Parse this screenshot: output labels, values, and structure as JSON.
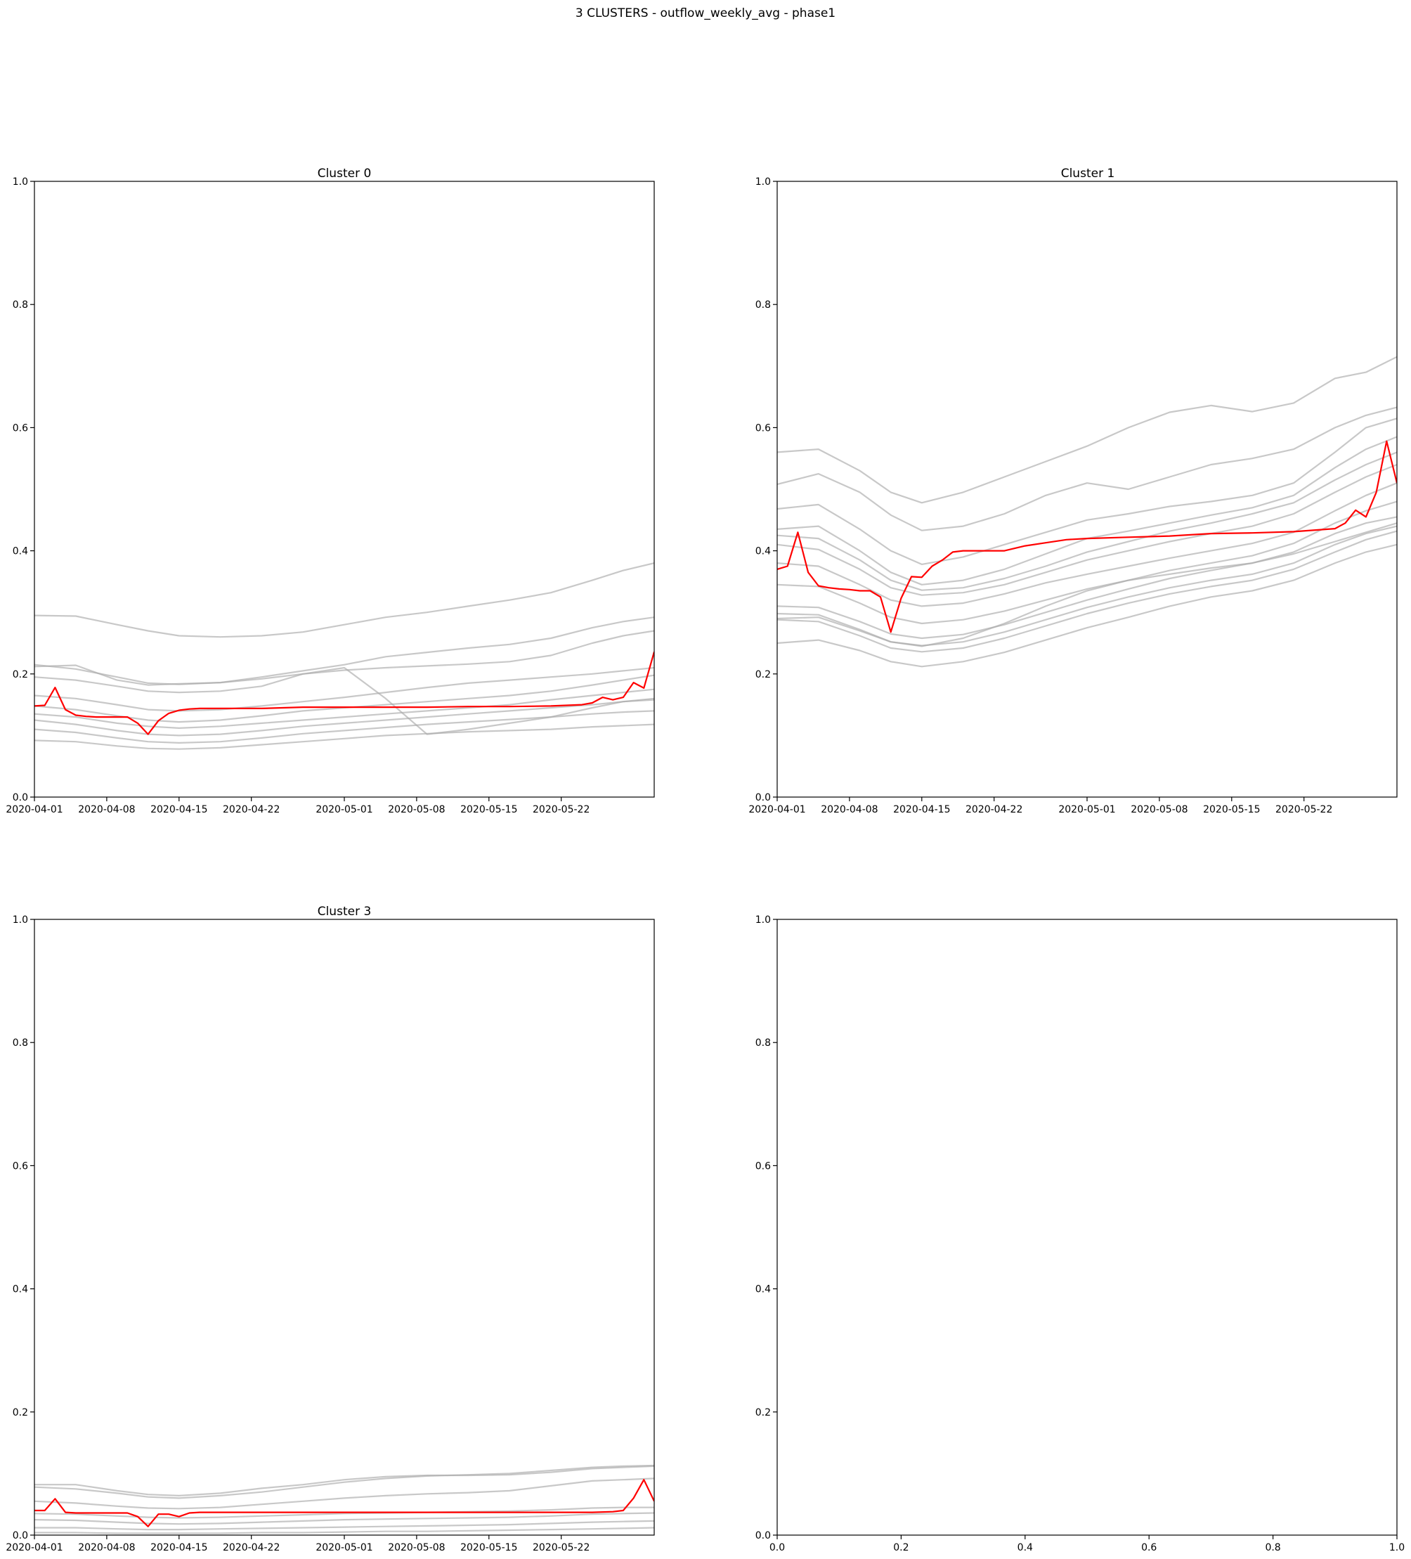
{
  "figure": {
    "title": "3 CLUSTERS - outflow_weekly_avg - phase1"
  },
  "colors": {
    "member": "#aaaaaa",
    "centroid": "#ff0000",
    "axis": "#000000"
  },
  "chart_data": [
    {
      "type": "line",
      "title": "Cluster 0",
      "ylim": [
        0,
        1
      ],
      "y_ticks": [
        "0.0",
        "0.2",
        "0.4",
        "0.6",
        "0.8",
        "1.0"
      ],
      "x_ticks": [
        "2020-04-01",
        "2020-04-08",
        "2020-04-15",
        "2020-04-22",
        "2020-05-01",
        "2020-05-08",
        "2020-05-15",
        "2020-05-22"
      ],
      "x_days": [
        0,
        7,
        14,
        21,
        30,
        37,
        44,
        51
      ],
      "x_range_days": [
        0,
        60
      ],
      "x": [
        0,
        4,
        8,
        11,
        14,
        18,
        22,
        26,
        30,
        34,
        38,
        42,
        46,
        50,
        54,
        57,
        60
      ],
      "series": [
        {
          "role": "member",
          "values": [
            0.295,
            0.294,
            0.28,
            0.27,
            0.262,
            0.26,
            0.262,
            0.268,
            0.28,
            0.292,
            0.3,
            0.31,
            0.32,
            0.332,
            0.352,
            0.368,
            0.38
          ]
        },
        {
          "role": "member",
          "values": [
            0.212,
            0.214,
            0.19,
            0.182,
            0.184,
            0.186,
            0.195,
            0.205,
            0.215,
            0.228,
            0.235,
            0.242,
            0.248,
            0.258,
            0.275,
            0.285,
            0.292
          ]
        },
        {
          "role": "member",
          "values": [
            0.215,
            0.208,
            0.195,
            0.185,
            0.183,
            0.186,
            0.192,
            0.2,
            0.206,
            0.21,
            0.213,
            0.216,
            0.22,
            0.23,
            0.25,
            0.262,
            0.27
          ]
        },
        {
          "role": "member",
          "values": [
            0.195,
            0.19,
            0.18,
            0.172,
            0.17,
            0.172,
            0.18,
            0.2,
            0.21,
            0.16,
            0.102,
            0.11,
            0.12,
            0.13,
            0.145,
            0.155,
            0.16
          ]
        },
        {
          "role": "member",
          "values": [
            0.165,
            0.16,
            0.15,
            0.142,
            0.14,
            0.142,
            0.148,
            0.155,
            0.162,
            0.17,
            0.178,
            0.185,
            0.19,
            0.195,
            0.2,
            0.205,
            0.21
          ]
        },
        {
          "role": "member",
          "values": [
            0.148,
            0.142,
            0.132,
            0.125,
            0.122,
            0.125,
            0.132,
            0.14,
            0.145,
            0.15,
            0.155,
            0.16,
            0.165,
            0.172,
            0.182,
            0.19,
            0.198
          ]
        },
        {
          "role": "member",
          "values": [
            0.135,
            0.13,
            0.12,
            0.115,
            0.112,
            0.115,
            0.12,
            0.125,
            0.13,
            0.135,
            0.14,
            0.145,
            0.15,
            0.158,
            0.165,
            0.17,
            0.175
          ]
        },
        {
          "role": "member",
          "values": [
            0.125,
            0.118,
            0.108,
            0.102,
            0.1,
            0.102,
            0.108,
            0.115,
            0.12,
            0.125,
            0.13,
            0.135,
            0.14,
            0.145,
            0.15,
            0.155,
            0.158
          ]
        },
        {
          "role": "member",
          "values": [
            0.11,
            0.105,
            0.096,
            0.09,
            0.088,
            0.09,
            0.096,
            0.103,
            0.108,
            0.113,
            0.118,
            0.122,
            0.126,
            0.13,
            0.135,
            0.138,
            0.14
          ]
        },
        {
          "role": "member",
          "values": [
            0.092,
            0.09,
            0.083,
            0.079,
            0.078,
            0.08,
            0.085,
            0.09,
            0.095,
            0.1,
            0.103,
            0.106,
            0.108,
            0.11,
            0.114,
            0.116,
            0.118
          ]
        }
      ],
      "centroid": {
        "x": [
          0,
          1,
          2,
          3,
          4,
          5,
          6,
          7,
          8,
          9,
          10,
          11,
          12,
          13,
          14,
          15,
          16,
          18,
          22,
          26,
          30,
          34,
          38,
          42,
          46,
          50,
          53,
          54,
          55,
          56,
          57,
          58,
          59,
          60
        ],
        "values": [
          0.148,
          0.149,
          0.178,
          0.142,
          0.133,
          0.131,
          0.13,
          0.13,
          0.13,
          0.13,
          0.12,
          0.102,
          0.124,
          0.136,
          0.141,
          0.143,
          0.144,
          0.144,
          0.144,
          0.146,
          0.146,
          0.146,
          0.146,
          0.147,
          0.147,
          0.148,
          0.15,
          0.153,
          0.162,
          0.158,
          0.162,
          0.186,
          0.177,
          0.236
        ]
      }
    },
    {
      "type": "line",
      "title": "Cluster 1",
      "ylim": [
        0,
        1
      ],
      "y_ticks": [
        "0.0",
        "0.2",
        "0.4",
        "0.6",
        "0.8",
        "1.0"
      ],
      "x_ticks": [
        "2020-04-01",
        "2020-04-08",
        "2020-04-15",
        "2020-04-22",
        "2020-05-01",
        "2020-05-08",
        "2020-05-15",
        "2020-05-22"
      ],
      "x_days": [
        0,
        7,
        14,
        21,
        30,
        37,
        44,
        51
      ],
      "x_range_days": [
        0,
        60
      ],
      "x": [
        0,
        4,
        8,
        11,
        14,
        18,
        22,
        26,
        30,
        34,
        38,
        42,
        46,
        50,
        54,
        57,
        60
      ],
      "series": [
        {
          "role": "member",
          "values": [
            0.56,
            0.565,
            0.53,
            0.495,
            0.478,
            0.495,
            0.52,
            0.545,
            0.57,
            0.6,
            0.625,
            0.636,
            0.626,
            0.64,
            0.68,
            0.69,
            0.715
          ]
        },
        {
          "role": "member",
          "values": [
            0.508,
            0.525,
            0.495,
            0.458,
            0.433,
            0.44,
            0.46,
            0.49,
            0.51,
            0.5,
            0.52,
            0.54,
            0.55,
            0.565,
            0.6,
            0.62,
            0.633
          ]
        },
        {
          "role": "member",
          "values": [
            0.468,
            0.475,
            0.435,
            0.4,
            0.378,
            0.39,
            0.41,
            0.43,
            0.45,
            0.46,
            0.472,
            0.48,
            0.49,
            0.51,
            0.56,
            0.6,
            0.615
          ]
        },
        {
          "role": "member",
          "values": [
            0.435,
            0.44,
            0.4,
            0.365,
            0.345,
            0.352,
            0.37,
            0.395,
            0.42,
            0.432,
            0.445,
            0.458,
            0.47,
            0.49,
            0.535,
            0.565,
            0.585
          ]
        },
        {
          "role": "member",
          "values": [
            0.425,
            0.42,
            0.385,
            0.352,
            0.336,
            0.34,
            0.355,
            0.375,
            0.398,
            0.415,
            0.432,
            0.445,
            0.46,
            0.478,
            0.515,
            0.54,
            0.56
          ]
        },
        {
          "role": "member",
          "values": [
            0.41,
            0.402,
            0.37,
            0.34,
            0.328,
            0.332,
            0.345,
            0.365,
            0.385,
            0.4,
            0.415,
            0.428,
            0.44,
            0.46,
            0.495,
            0.52,
            0.54
          ]
        },
        {
          "role": "member",
          "values": [
            0.38,
            0.375,
            0.345,
            0.32,
            0.31,
            0.315,
            0.33,
            0.348,
            0.362,
            0.375,
            0.388,
            0.4,
            0.412,
            0.43,
            0.465,
            0.49,
            0.51
          ]
        },
        {
          "role": "member",
          "values": [
            0.345,
            0.342,
            0.315,
            0.292,
            0.282,
            0.288,
            0.302,
            0.32,
            0.338,
            0.352,
            0.368,
            0.38,
            0.392,
            0.412,
            0.445,
            0.465,
            0.48
          ]
        },
        {
          "role": "member",
          "values": [
            0.31,
            0.308,
            0.285,
            0.265,
            0.258,
            0.264,
            0.28,
            0.3,
            0.32,
            0.338,
            0.355,
            0.368,
            0.38,
            0.398,
            0.428,
            0.445,
            0.455
          ]
        },
        {
          "role": "member",
          "values": [
            0.298,
            0.296,
            0.272,
            0.252,
            0.246,
            0.252,
            0.268,
            0.288,
            0.308,
            0.325,
            0.34,
            0.352,
            0.362,
            0.38,
            0.41,
            0.428,
            0.44
          ]
        },
        {
          "role": "member",
          "values": [
            0.288,
            0.285,
            0.262,
            0.242,
            0.236,
            0.242,
            0.258,
            0.278,
            0.298,
            0.315,
            0.33,
            0.342,
            0.352,
            0.37,
            0.398,
            0.418,
            0.432
          ]
        },
        {
          "role": "member",
          "values": [
            0.25,
            0.255,
            0.238,
            0.22,
            0.212,
            0.22,
            0.235,
            0.255,
            0.275,
            0.292,
            0.31,
            0.325,
            0.335,
            0.352,
            0.38,
            0.398,
            0.41
          ]
        },
        {
          "role": "member",
          "values": [
            0.29,
            0.292,
            0.27,
            0.252,
            0.245,
            0.258,
            0.282,
            0.31,
            0.335,
            0.352,
            0.362,
            0.372,
            0.38,
            0.395,
            0.415,
            0.43,
            0.445
          ]
        }
      ],
      "centroid": {
        "x": [
          0,
          1,
          2,
          3,
          4,
          5,
          6,
          7,
          8,
          9,
          10,
          11,
          12,
          13,
          14,
          15,
          16,
          17,
          18,
          20,
          22,
          24,
          26,
          28,
          30,
          34,
          38,
          42,
          46,
          50,
          54,
          55,
          56,
          57,
          58,
          59,
          60
        ],
        "values": [
          0.37,
          0.375,
          0.43,
          0.365,
          0.343,
          0.34,
          0.338,
          0.337,
          0.335,
          0.335,
          0.325,
          0.268,
          0.323,
          0.358,
          0.357,
          0.375,
          0.385,
          0.398,
          0.4,
          0.4,
          0.4,
          0.408,
          0.413,
          0.418,
          0.42,
          0.422,
          0.424,
          0.428,
          0.429,
          0.431,
          0.436,
          0.445,
          0.466,
          0.455,
          0.495,
          0.578,
          0.51
        ]
      }
    },
    {
      "type": "line",
      "title": "Cluster 3",
      "ylim": [
        0,
        1
      ],
      "y_ticks": [
        "0.0",
        "0.2",
        "0.4",
        "0.6",
        "0.8",
        "1.0"
      ],
      "x_ticks": [
        "2020-04-01",
        "2020-04-08",
        "2020-04-15",
        "2020-04-22",
        "2020-05-01",
        "2020-05-08",
        "2020-05-15",
        "2020-05-22"
      ],
      "x_days": [
        0,
        7,
        14,
        21,
        30,
        37,
        44,
        51
      ],
      "x_range_days": [
        0,
        60
      ],
      "x": [
        0,
        4,
        8,
        11,
        14,
        18,
        22,
        26,
        30,
        34,
        38,
        42,
        46,
        50,
        54,
        57,
        60
      ],
      "series": [
        {
          "role": "member",
          "values": [
            0.082,
            0.082,
            0.072,
            0.066,
            0.064,
            0.068,
            0.076,
            0.082,
            0.09,
            0.095,
            0.097,
            0.097,
            0.098,
            0.102,
            0.108,
            0.11,
            0.112
          ]
        },
        {
          "role": "member",
          "values": [
            0.078,
            0.075,
            0.068,
            0.062,
            0.06,
            0.064,
            0.07,
            0.078,
            0.086,
            0.092,
            0.096,
            0.098,
            0.1,
            0.105,
            0.11,
            0.112,
            0.113
          ]
        },
        {
          "role": "member",
          "values": [
            0.055,
            0.052,
            0.047,
            0.044,
            0.043,
            0.045,
            0.05,
            0.055,
            0.06,
            0.064,
            0.067,
            0.069,
            0.072,
            0.08,
            0.088,
            0.09,
            0.092
          ]
        },
        {
          "role": "member",
          "values": [
            0.035,
            0.034,
            0.031,
            0.029,
            0.028,
            0.029,
            0.031,
            0.033,
            0.035,
            0.036,
            0.037,
            0.038,
            0.039,
            0.041,
            0.044,
            0.045,
            0.045
          ]
        },
        {
          "role": "member",
          "values": [
            0.025,
            0.024,
            0.021,
            0.019,
            0.018,
            0.019,
            0.021,
            0.023,
            0.025,
            0.026,
            0.027,
            0.028,
            0.029,
            0.031,
            0.034,
            0.035,
            0.036
          ]
        },
        {
          "role": "member",
          "values": [
            0.012,
            0.012,
            0.01,
            0.009,
            0.009,
            0.01,
            0.011,
            0.012,
            0.013,
            0.014,
            0.015,
            0.016,
            0.017,
            0.019,
            0.021,
            0.022,
            0.023
          ]
        },
        {
          "role": "member",
          "values": [
            0.004,
            0.004,
            0.003,
            0.003,
            0.003,
            0.003,
            0.004,
            0.004,
            0.005,
            0.006,
            0.006,
            0.007,
            0.008,
            0.009,
            0.01,
            0.011,
            0.012
          ]
        }
      ],
      "centroid": {
        "x": [
          0,
          1,
          2,
          3,
          4,
          5,
          6,
          7,
          8,
          9,
          10,
          11,
          12,
          13,
          14,
          15,
          16,
          18,
          22,
          26,
          30,
          34,
          38,
          42,
          46,
          50,
          54,
          56,
          57,
          58,
          59,
          60
        ],
        "values": [
          0.04,
          0.04,
          0.059,
          0.037,
          0.036,
          0.036,
          0.036,
          0.036,
          0.036,
          0.036,
          0.03,
          0.014,
          0.034,
          0.034,
          0.03,
          0.036,
          0.037,
          0.037,
          0.037,
          0.037,
          0.037,
          0.037,
          0.037,
          0.037,
          0.037,
          0.037,
          0.037,
          0.038,
          0.04,
          0.06,
          0.09,
          0.055
        ]
      }
    },
    {
      "type": "line",
      "title": "",
      "xlim": [
        0,
        1
      ],
      "ylim": [
        0,
        1
      ],
      "y_ticks": [
        "0.0",
        "0.2",
        "0.4",
        "0.6",
        "0.8",
        "1.0"
      ],
      "x_ticks": [
        "0.0",
        "0.2",
        "0.4",
        "0.6",
        "0.8",
        "1.0"
      ],
      "series": []
    }
  ]
}
